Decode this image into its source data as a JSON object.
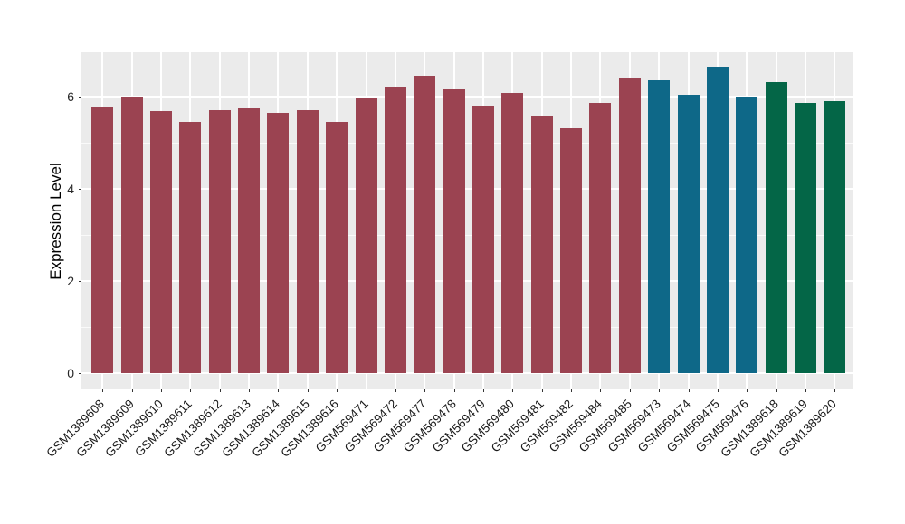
{
  "chart_data": {
    "type": "bar",
    "title": "",
    "xlabel": "",
    "ylabel": "Expression Level",
    "yticks": [
      0,
      2,
      4,
      6
    ],
    "yminor": [
      1,
      3,
      5
    ],
    "ylim": [
      -0.33,
      6.95
    ],
    "grid": "on",
    "legend": "none",
    "panel_background": "#ebebeb",
    "gridline_color": "#ffffff",
    "categories": [
      "GSM1389608",
      "GSM1389609",
      "GSM1389610",
      "GSM1389611",
      "GSM1389612",
      "GSM1389613",
      "GSM1389614",
      "GSM1389615",
      "GSM1389616",
      "GSM569471",
      "GSM569472",
      "GSM569477",
      "GSM569478",
      "GSM569479",
      "GSM569480",
      "GSM569481",
      "GSM569482",
      "GSM569484",
      "GSM569485",
      "GSM569473",
      "GSM569474",
      "GSM569475",
      "GSM569476",
      "GSM1389618",
      "GSM1389619",
      "GSM1389620"
    ],
    "values": [
      5.78,
      6.0,
      5.68,
      5.45,
      5.7,
      5.76,
      5.65,
      5.71,
      5.45,
      5.98,
      6.21,
      6.45,
      6.18,
      5.79,
      6.07,
      5.58,
      5.3,
      5.86,
      6.41,
      6.35,
      6.03,
      6.64,
      5.99,
      6.3,
      5.86,
      5.9
    ],
    "bar_groups": [
      "group1",
      "group1",
      "group1",
      "group1",
      "group1",
      "group1",
      "group1",
      "group1",
      "group1",
      "group1",
      "group1",
      "group1",
      "group1",
      "group1",
      "group1",
      "group1",
      "group1",
      "group1",
      "group1",
      "group2",
      "group2",
      "group2",
      "group2",
      "group3",
      "group3",
      "group3"
    ],
    "group_colors": {
      "group1": "#9b4351",
      "group2": "#0e6888",
      "group3": "#046647"
    }
  }
}
